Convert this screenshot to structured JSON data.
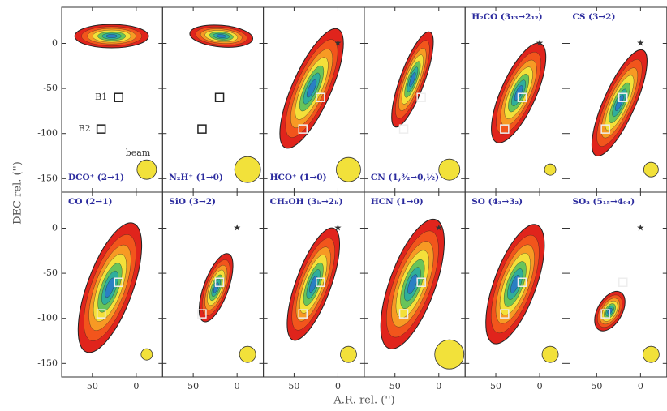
{
  "chart_data": {
    "type": "contour-map-grid",
    "xlabel": "A.R. rel. ('')",
    "ylabel": "DEC rel. ('')",
    "xlim": [
      85,
      -30
    ],
    "ylim": [
      -165,
      40
    ],
    "xticks": [
      50,
      0
    ],
    "yticks": [
      0,
      -50,
      -100,
      -150
    ],
    "panels": [
      {
        "label": "DCO⁺ (2→1)"
      },
      {
        "label": "N₂H⁺ (1→0)"
      },
      {
        "label": "HCO⁺ (1→0)"
      },
      {
        "label": "CN (1,³⁄₂→0,½)"
      },
      {
        "label": "H₂CO (3₁₃→2₁₂)"
      },
      {
        "label": "CS (3→2)"
      },
      {
        "label": "CO (2→1)"
      },
      {
        "label": "SiO (3→2)"
      },
      {
        "label": "CH₃OH (3ₖ→2ₖ)"
      },
      {
        "label": "HCN (1→0)"
      },
      {
        "label": "SO (4₃→3₂)"
      },
      {
        "label": "SO₂ (5₁₅→4₀₄)"
      }
    ],
    "annotations": [
      "B1",
      "B2",
      "beam"
    ]
  }
}
